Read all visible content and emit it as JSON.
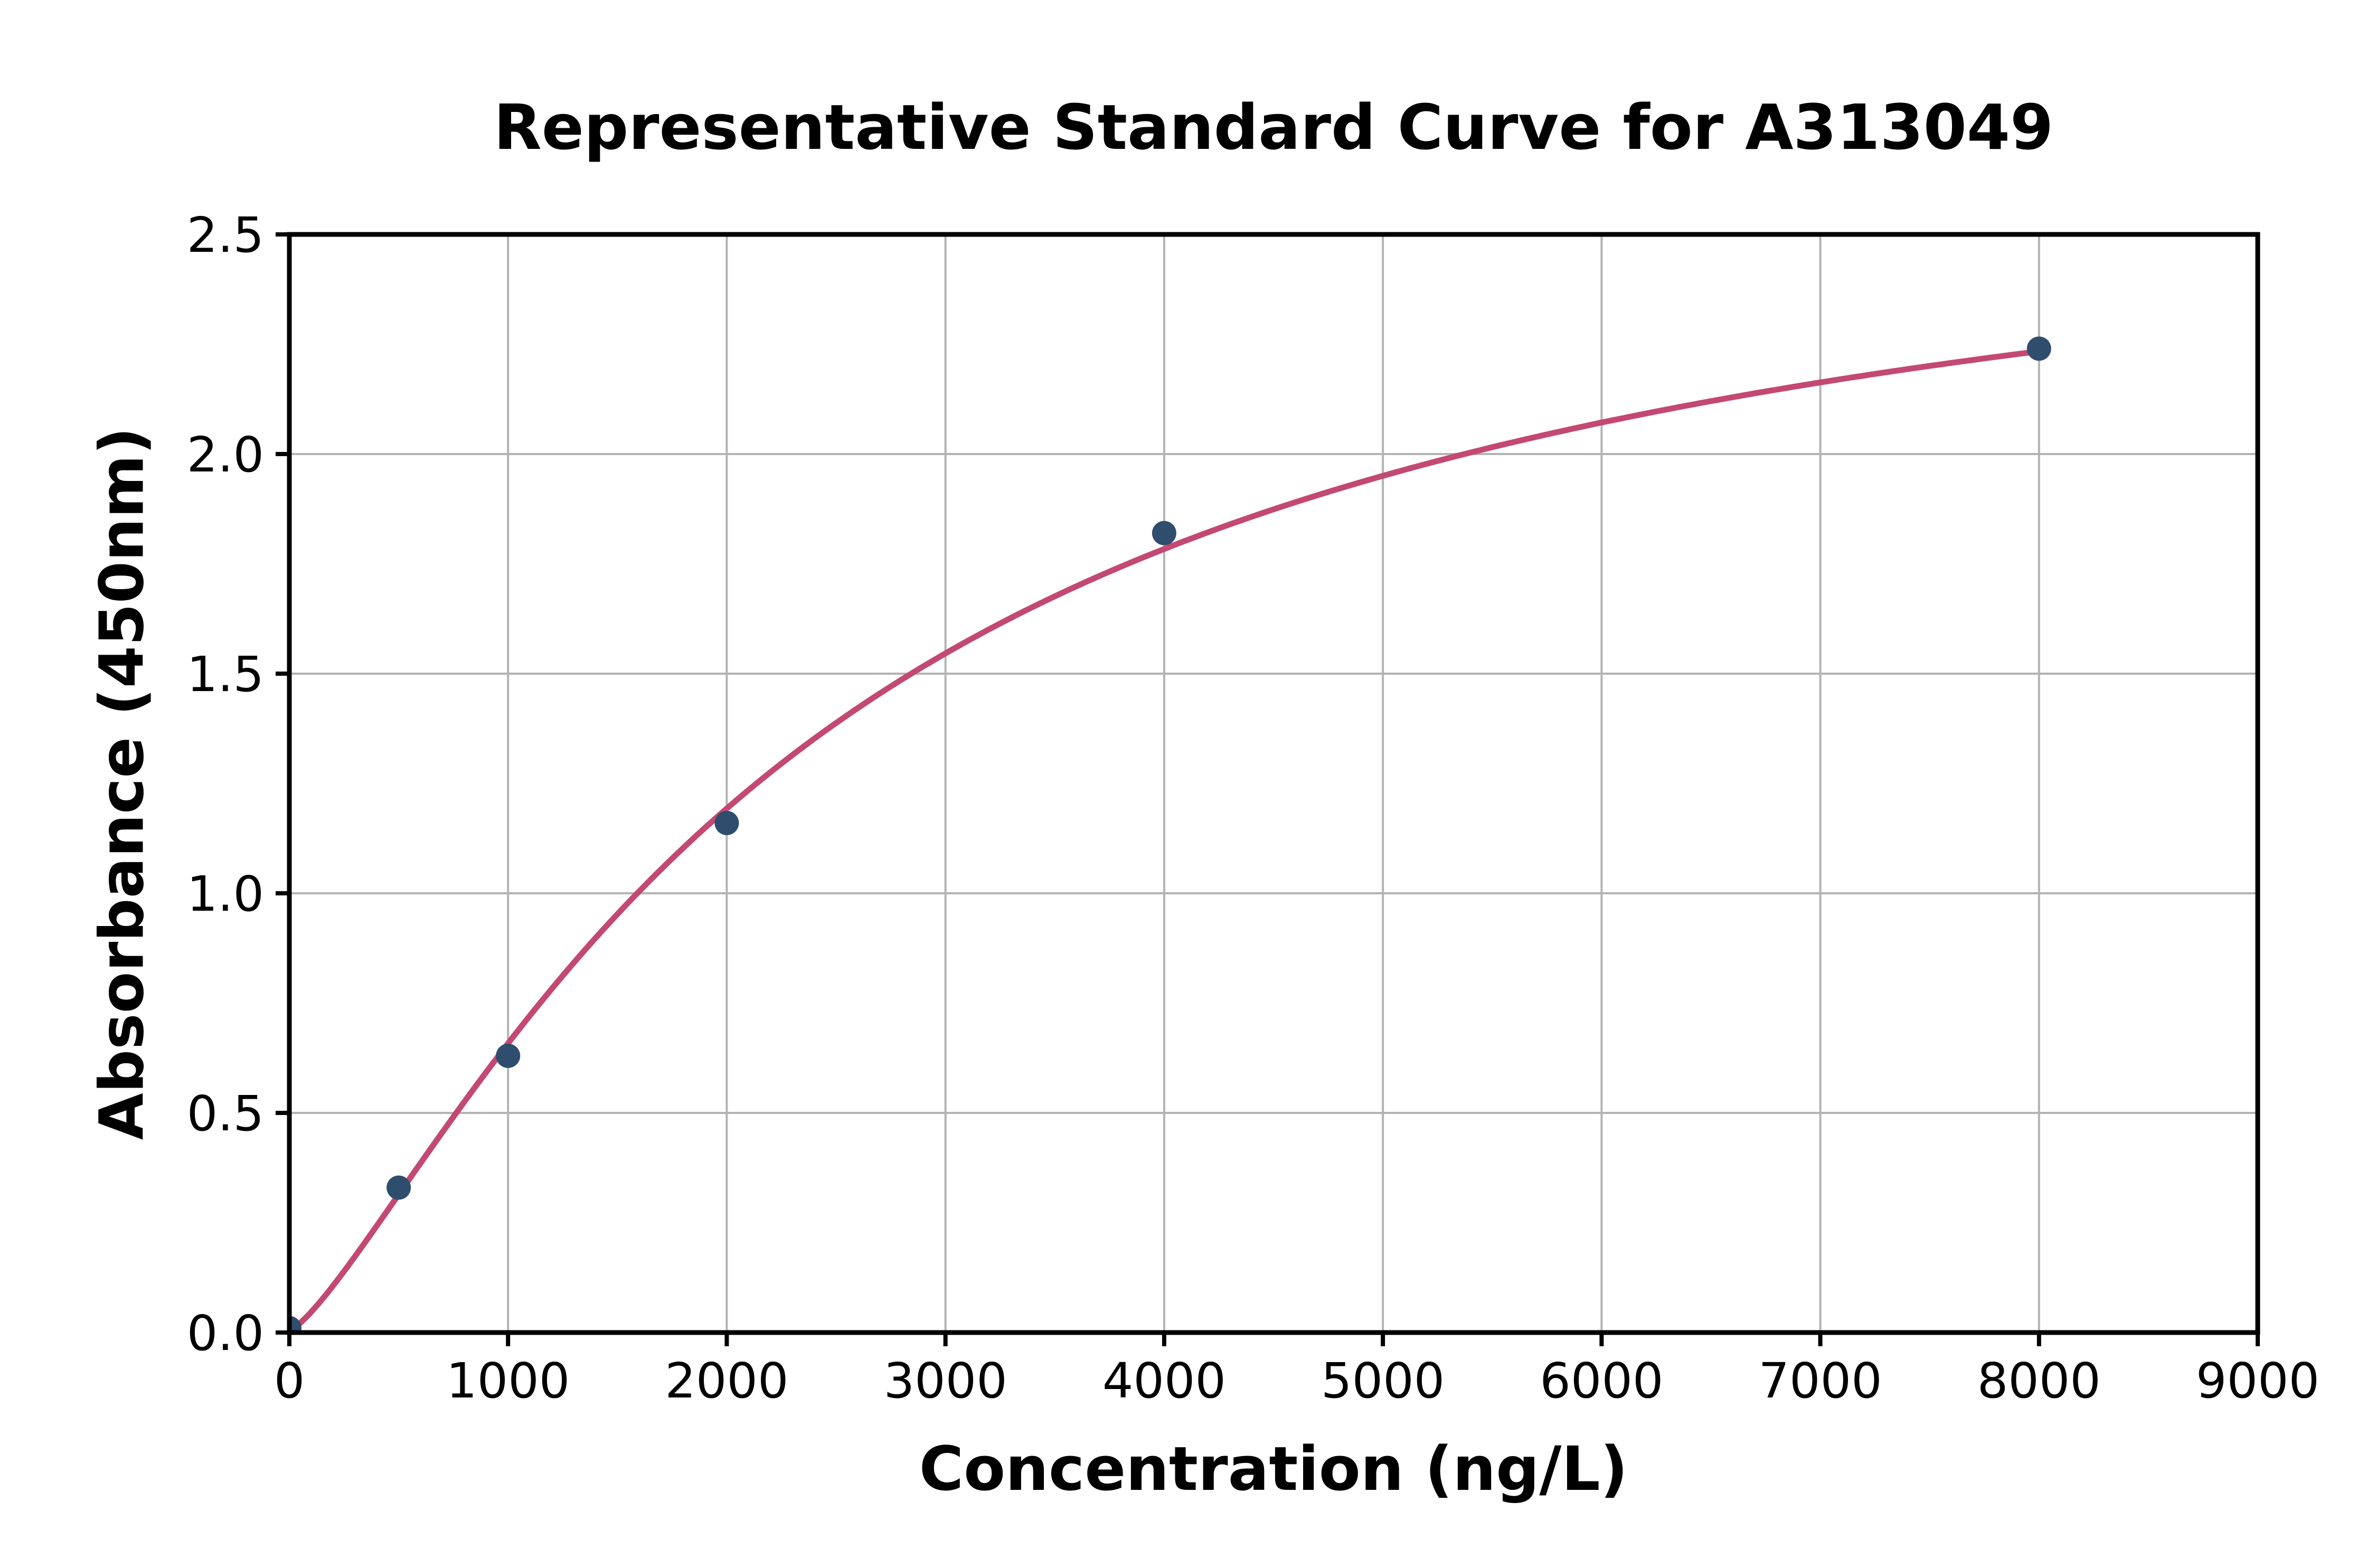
{
  "chart_data": {
    "type": "scatter",
    "title": "Representative Standard Curve for A313049",
    "xlabel": "Concentration (ng/L)",
    "ylabel": "Absorbance (450nm)",
    "xlim": [
      0,
      9000
    ],
    "ylim": [
      0,
      2.5
    ],
    "x_ticks": [
      0,
      1000,
      2000,
      3000,
      4000,
      5000,
      6000,
      7000,
      8000,
      9000
    ],
    "x_tick_labels": [
      "0",
      "1000",
      "2000",
      "3000",
      "4000",
      "5000",
      "6000",
      "7000",
      "8000",
      "9000"
    ],
    "y_ticks": [
      0.0,
      0.5,
      1.0,
      1.5,
      2.0,
      2.5
    ],
    "y_tick_labels": [
      "0.0",
      "0.5",
      "1.0",
      "1.5",
      "2.0",
      "2.5"
    ],
    "grid": true,
    "legend": "none",
    "points": [
      {
        "x": 0,
        "y": 0.01
      },
      {
        "x": 500,
        "y": 0.33
      },
      {
        "x": 1000,
        "y": 0.63
      },
      {
        "x": 2000,
        "y": 1.16
      },
      {
        "x": 4000,
        "y": 1.82
      },
      {
        "x": 8000,
        "y": 2.24
      }
    ],
    "fit_curve": {
      "model": "4PL",
      "a": 0.004,
      "b": 1.3,
      "c": 2400,
      "d": 2.7,
      "x_range": [
        0,
        8000
      ]
    },
    "colors": {
      "curve": "#C34972",
      "marker": "#2F4D6D",
      "grid": "#B3B3B3",
      "axis": "#000000",
      "text": "#000000",
      "background": "#FFFFFF"
    }
  }
}
